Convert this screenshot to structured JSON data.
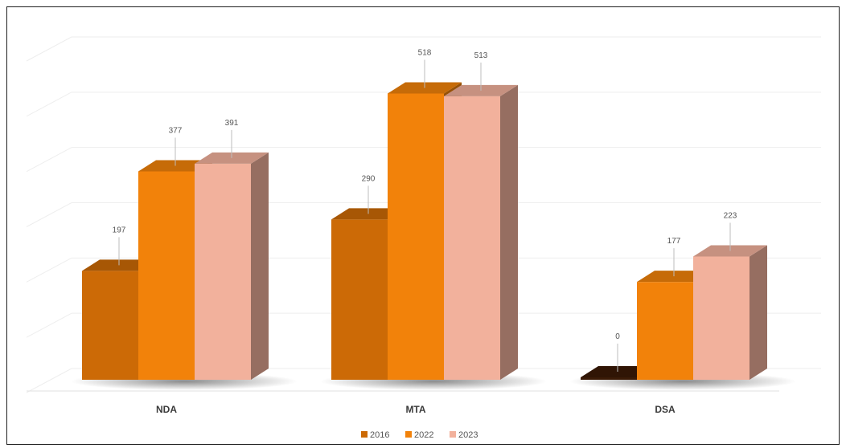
{
  "chart_data": {
    "type": "bar",
    "title": "",
    "xlabel": "",
    "ylabel": "",
    "categories": [
      "NDA",
      "MTA",
      "DSA"
    ],
    "series": [
      {
        "name": "2016",
        "values": [
          197,
          290,
          0
        ],
        "color": "#cc6a06"
      },
      {
        "name": "2022",
        "values": [
          377,
          518,
          177
        ],
        "color": "#f2820a"
      },
      {
        "name": "2023",
        "values": [
          391,
          513,
          223
        ],
        "color": "#f2b19c"
      }
    ],
    "ylim": [
      0,
      600
    ],
    "grid": true,
    "legend": "bottom",
    "style": "3d-clustered-column"
  }
}
